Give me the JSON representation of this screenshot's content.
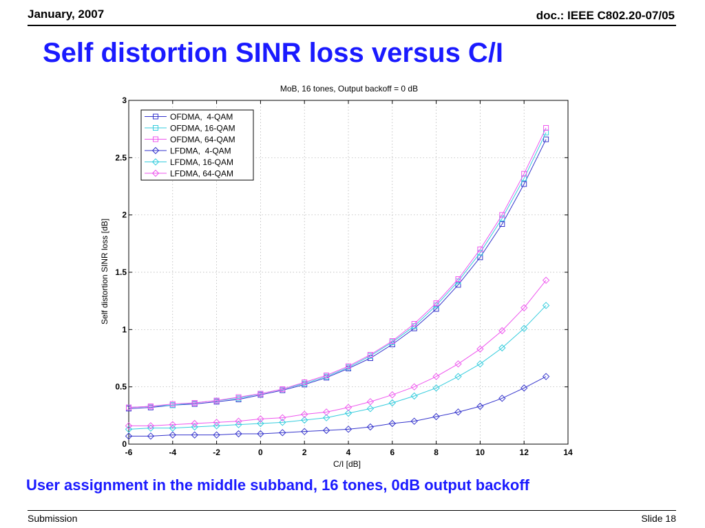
{
  "header": {
    "date": "January, 2007",
    "doc_id": "doc.: IEEE C802.20-07/05"
  },
  "slide": {
    "title": "Self distortion SINR loss versus C/I",
    "caption": "User assignment in the middle subband, 16 tones, 0dB output backoff"
  },
  "footer": {
    "left": "Submission",
    "right": "Slide 18"
  },
  "chart_data": {
    "type": "line",
    "title": "MoB, 16 tones, Output backoff = 0 dB",
    "xlabel": "C/I [dB]",
    "ylabel": "Self distortion SINR loss [dB]",
    "xlim": [
      -6,
      14
    ],
    "ylim": [
      0,
      3
    ],
    "xticks": [
      -6,
      -4,
      -2,
      0,
      2,
      4,
      6,
      8,
      10,
      12,
      14
    ],
    "yticks": [
      0,
      0.5,
      1,
      1.5,
      2,
      2.5,
      3
    ],
    "xtick_labels": [
      "-6",
      "-4",
      "-2",
      "0",
      "2",
      "4",
      "6",
      "8",
      "10",
      "12",
      "14"
    ],
    "ytick_labels": [
      "0",
      "0.5",
      "1",
      "1.5",
      "2",
      "2.5",
      "3"
    ],
    "grid": true,
    "legend_position": "top-left",
    "x": [
      -6,
      -5,
      -4,
      -3,
      -2,
      -1,
      0,
      1,
      2,
      3,
      4,
      5,
      6,
      7,
      8,
      9,
      10,
      11,
      12,
      13
    ],
    "series": [
      {
        "name": "OFDMA,  4-QAM",
        "marker": "square",
        "color": "#3333cc",
        "values": [
          0.31,
          0.32,
          0.34,
          0.35,
          0.37,
          0.39,
          0.43,
          0.47,
          0.52,
          0.58,
          0.66,
          0.75,
          0.87,
          1.01,
          1.18,
          1.39,
          1.63,
          1.92,
          2.27,
          2.66
        ]
      },
      {
        "name": "OFDMA, 16-QAM",
        "marker": "square",
        "color": "#33ccdd",
        "values": [
          0.32,
          0.33,
          0.34,
          0.36,
          0.38,
          0.4,
          0.44,
          0.48,
          0.53,
          0.59,
          0.67,
          0.77,
          0.89,
          1.03,
          1.21,
          1.42,
          1.67,
          1.97,
          2.32,
          2.72
        ]
      },
      {
        "name": "OFDMA, 64-QAM",
        "marker": "square",
        "color": "#ee55ee",
        "values": [
          0.32,
          0.33,
          0.35,
          0.36,
          0.38,
          0.41,
          0.44,
          0.48,
          0.54,
          0.6,
          0.68,
          0.78,
          0.9,
          1.05,
          1.23,
          1.44,
          1.7,
          2.0,
          2.36,
          2.76
        ]
      },
      {
        "name": "LFDMA,  4-QAM",
        "marker": "diamond",
        "color": "#3333cc",
        "values": [
          0.07,
          0.07,
          0.08,
          0.08,
          0.08,
          0.09,
          0.09,
          0.1,
          0.11,
          0.12,
          0.13,
          0.15,
          0.18,
          0.2,
          0.24,
          0.28,
          0.33,
          0.4,
          0.49,
          0.59
        ]
      },
      {
        "name": "LFDMA, 16-QAM",
        "marker": "diamond",
        "color": "#33ccdd",
        "values": [
          0.13,
          0.14,
          0.14,
          0.15,
          0.16,
          0.17,
          0.18,
          0.19,
          0.21,
          0.23,
          0.27,
          0.31,
          0.36,
          0.42,
          0.49,
          0.59,
          0.7,
          0.84,
          1.01,
          1.21
        ]
      },
      {
        "name": "LFDMA, 64-QAM",
        "marker": "diamond",
        "color": "#ee55ee",
        "values": [
          0.16,
          0.16,
          0.17,
          0.18,
          0.19,
          0.2,
          0.22,
          0.23,
          0.26,
          0.28,
          0.32,
          0.37,
          0.43,
          0.5,
          0.59,
          0.7,
          0.83,
          0.99,
          1.19,
          1.43
        ]
      }
    ]
  }
}
